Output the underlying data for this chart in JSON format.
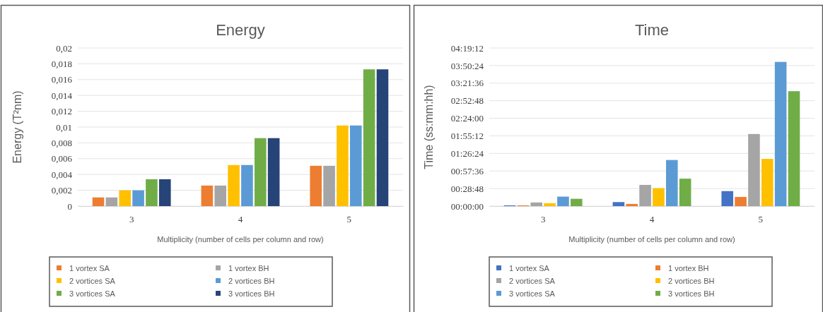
{
  "chart_data": [
    {
      "type": "bar",
      "title": "Energy",
      "xlabel": "Multiplicity (number of cells per column and row)",
      "ylabel": "Energy (T²nm)",
      "categories": [
        "3",
        "4",
        "5"
      ],
      "series": [
        {
          "name": "1 vortex SA",
          "color": "#ed7d31",
          "values": [
            0.0011,
            0.0026,
            0.0051
          ]
        },
        {
          "name": "1 vortex BH",
          "color": "#a5a5a5",
          "values": [
            0.0011,
            0.0026,
            0.0051
          ]
        },
        {
          "name": "2 vortices SA",
          "color": "#ffc000",
          "values": [
            0.002,
            0.0052,
            0.0102
          ]
        },
        {
          "name": "2 vortices BH",
          "color": "#5b9bd5",
          "values": [
            0.002,
            0.0052,
            0.0102
          ]
        },
        {
          "name": "3 vortices SA",
          "color": "#70ad47",
          "values": [
            0.0034,
            0.0086,
            0.0173
          ]
        },
        {
          "name": "3 vortices BH",
          "color": "#264478",
          "values": [
            0.0034,
            0.0086,
            0.0173
          ]
        }
      ],
      "ylim": [
        0,
        0.02
      ],
      "yticks": [
        {
          "value": 0,
          "label": "0"
        },
        {
          "value": 0.002,
          "label": "0,002"
        },
        {
          "value": 0.004,
          "label": "0,004"
        },
        {
          "value": 0.006,
          "label": "0,006"
        },
        {
          "value": 0.008,
          "label": "0,008"
        },
        {
          "value": 0.01,
          "label": "0,01"
        },
        {
          "value": 0.012,
          "label": "0,012"
        },
        {
          "value": 0.014,
          "label": "0,014"
        },
        {
          "value": 0.016,
          "label": "0,016"
        },
        {
          "value": 0.018,
          "label": "0,018"
        },
        {
          "value": 0.02,
          "label": "0,02"
        }
      ],
      "grid": "y",
      "legend": "bottom"
    },
    {
      "type": "bar",
      "title": "Time",
      "xlabel": "Multiplicity (number of cells per column and row)",
      "ylabel": "Time (ss:mm:hh)",
      "categories": [
        "3",
        "4",
        "5"
      ],
      "series": [
        {
          "name": "1 vortex SA",
          "color": "#4472c4",
          "values": [
            0.02,
            0.11,
            0.41
          ]
        },
        {
          "name": "1 vortex BH",
          "color": "#ed7d31",
          "values": [
            0.02,
            0.06,
            0.25
          ]
        },
        {
          "name": "2 vortices SA",
          "color": "#a5a5a5",
          "values": [
            0.1,
            0.58,
            1.97
          ]
        },
        {
          "name": "2 vortices BH",
          "color": "#ffc000",
          "values": [
            0.08,
            0.49,
            1.29
          ]
        },
        {
          "name": "3 vortices SA",
          "color": "#5b9bd5",
          "values": [
            0.26,
            1.26,
            3.94
          ]
        },
        {
          "name": "3 vortices BH",
          "color": "#70ad47",
          "values": [
            0.2,
            0.75,
            3.14
          ]
        }
      ],
      "ylim": [
        0,
        4.32
      ],
      "yticks": [
        {
          "value": 0,
          "label": "00:00:00"
        },
        {
          "value": 0.48,
          "label": "00:28:48"
        },
        {
          "value": 0.96,
          "label": "00:57:36"
        },
        {
          "value": 1.44,
          "label": "01:26:24"
        },
        {
          "value": 1.92,
          "label": "01:55:12"
        },
        {
          "value": 2.4,
          "label": "02:24:00"
        },
        {
          "value": 2.88,
          "label": "02:52:48"
        },
        {
          "value": 3.36,
          "label": "03:21:36"
        },
        {
          "value": 3.84,
          "label": "03:50:24"
        },
        {
          "value": 4.32,
          "label": "04:19:12"
        }
      ],
      "grid": "y",
      "legend": "bottom"
    }
  ]
}
